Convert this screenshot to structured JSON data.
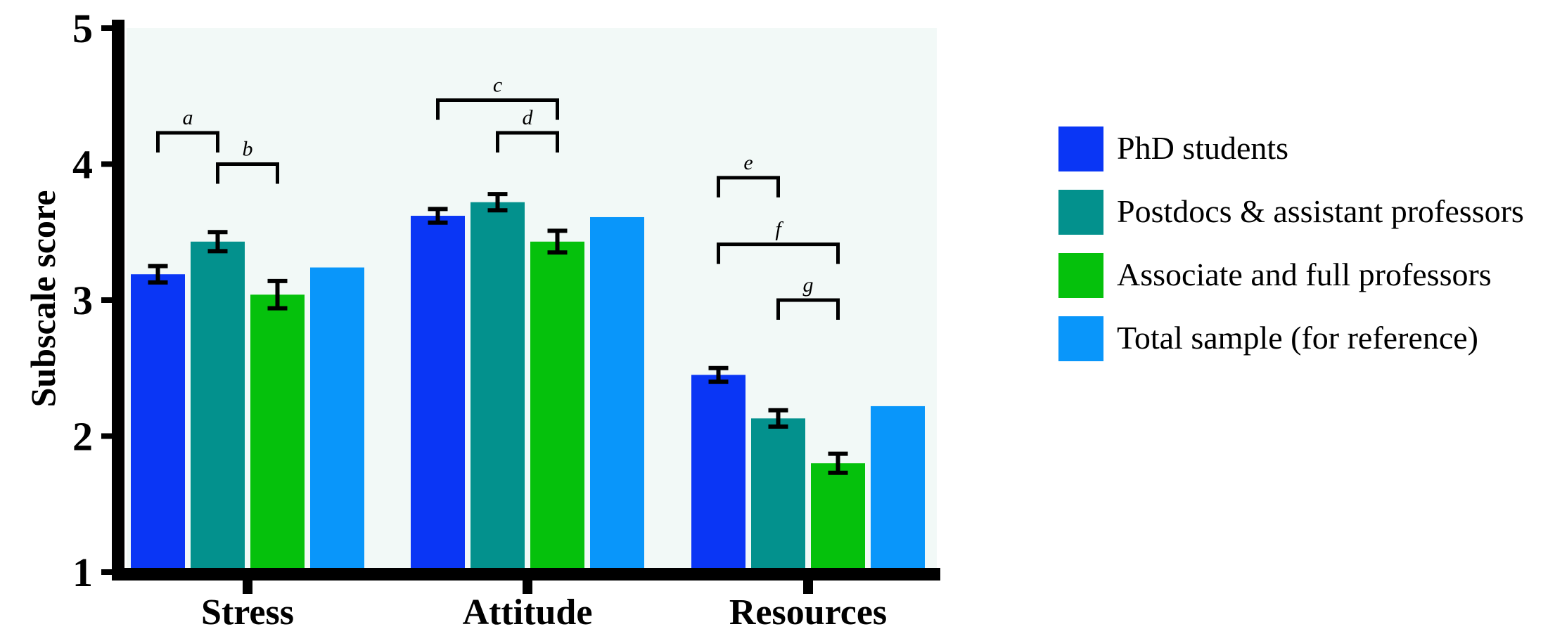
{
  "chart_data": {
    "type": "bar",
    "title": "",
    "xlabel": "",
    "ylabel": "Subscale score",
    "ylim": [
      1,
      5
    ],
    "yticks": [
      "1",
      "2",
      "3",
      "4",
      "5"
    ],
    "categories": [
      "Stress",
      "Attitude",
      "Resources"
    ],
    "grid": false,
    "legend_position": "right",
    "plot_background": "#f2f9f7",
    "series": [
      {
        "name": "PhD students",
        "color": "#0a36f5",
        "values": [
          3.19,
          3.62,
          2.45
        ],
        "errors": [
          0.06,
          0.05,
          0.05
        ]
      },
      {
        "name": "Postdocs & assistant professors",
        "color": "#03918d",
        "values": [
          3.43,
          3.72,
          2.13
        ],
        "errors": [
          0.07,
          0.06,
          0.06
        ]
      },
      {
        "name": "Associate and full professors",
        "color": "#05c10c",
        "values": [
          3.04,
          3.43,
          1.8
        ],
        "errors": [
          0.1,
          0.08,
          0.07
        ]
      },
      {
        "name": "Total sample (for reference)",
        "color": "#0996fa",
        "values": [
          3.24,
          3.61,
          2.22
        ],
        "errors": [
          null,
          null,
          null
        ]
      }
    ],
    "annotations": [
      {
        "label": "a",
        "category": 0,
        "from": 0,
        "to": 1,
        "y": 4.23
      },
      {
        "label": "b",
        "category": 0,
        "from": 1,
        "to": 2,
        "y": 4.0
      },
      {
        "label": "c",
        "category": 1,
        "from": 0,
        "to": 2,
        "y": 4.47
      },
      {
        "label": "d",
        "category": 1,
        "from": 1,
        "to": 2,
        "y": 4.23
      },
      {
        "label": "e",
        "category": 2,
        "from": 0,
        "to": 1,
        "y": 3.9
      },
      {
        "label": "f",
        "category": 2,
        "from": 0,
        "to": 2,
        "y": 3.41
      },
      {
        "label": "g",
        "category": 2,
        "from": 1,
        "to": 2,
        "y": 3.0
      }
    ]
  }
}
